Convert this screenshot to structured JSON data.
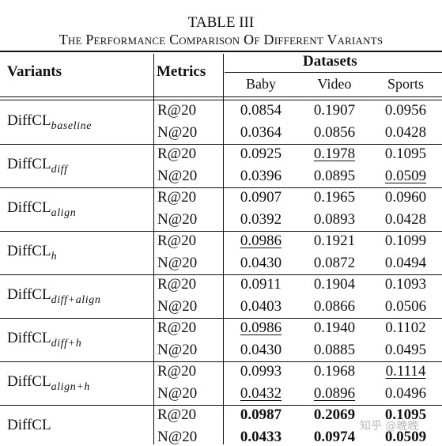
{
  "caption": {
    "label": "TABLE III",
    "title": "The Performance Comparison Of Different Variants"
  },
  "header": {
    "variants": "Variants",
    "metrics": "Metrics",
    "datasets": "Datasets",
    "columns": [
      "Baby",
      "Video",
      "Sports"
    ]
  },
  "groups": [
    {
      "base": "DiffCL",
      "suffix": "baseline",
      "rows": [
        {
          "metric": "R@20",
          "cells": [
            {
              "v": "0.0854"
            },
            {
              "v": "0.1907"
            },
            {
              "v": "0.0956"
            }
          ]
        },
        {
          "metric": "N@20",
          "cells": [
            {
              "v": "0.0364"
            },
            {
              "v": "0.0856"
            },
            {
              "v": "0.0428"
            }
          ]
        }
      ]
    },
    {
      "base": "DiffCL",
      "suffix": "diff",
      "rows": [
        {
          "metric": "R@20",
          "cells": [
            {
              "v": "0.0925"
            },
            {
              "v": "0.1978",
              "u": true
            },
            {
              "v": "0.1095"
            }
          ]
        },
        {
          "metric": "N@20",
          "cells": [
            {
              "v": "0.0396"
            },
            {
              "v": "0.0895"
            },
            {
              "v": "0.0509",
              "u": true
            }
          ]
        }
      ]
    },
    {
      "base": "DiffCL",
      "suffix": "align",
      "rows": [
        {
          "metric": "R@20",
          "cells": [
            {
              "v": "0.0907"
            },
            {
              "v": "0.1965"
            },
            {
              "v": "0.0960"
            }
          ]
        },
        {
          "metric": "N@20",
          "cells": [
            {
              "v": "0.0392"
            },
            {
              "v": "0.0893"
            },
            {
              "v": "0.0428"
            }
          ]
        }
      ]
    },
    {
      "base": "DiffCL",
      "suffix": "h",
      "rows": [
        {
          "metric": "R@20",
          "cells": [
            {
              "v": "0.0986",
              "u": true
            },
            {
              "v": "0.1921"
            },
            {
              "v": "0.1099"
            }
          ]
        },
        {
          "metric": "N@20",
          "cells": [
            {
              "v": "0.0430"
            },
            {
              "v": "0.0872"
            },
            {
              "v": "0.0494"
            }
          ]
        }
      ]
    },
    {
      "base": "DiffCL",
      "suffix": "diff+align",
      "rows": [
        {
          "metric": "R@20",
          "cells": [
            {
              "v": "0.0911"
            },
            {
              "v": "0.1904"
            },
            {
              "v": "0.1093"
            }
          ]
        },
        {
          "metric": "N@20",
          "cells": [
            {
              "v": "0.0403"
            },
            {
              "v": "0.0866"
            },
            {
              "v": "0.0506"
            }
          ]
        }
      ]
    },
    {
      "base": "DiffCL",
      "suffix": "diff+h",
      "rows": [
        {
          "metric": "R@20",
          "cells": [
            {
              "v": "0.0986",
              "u": true
            },
            {
              "v": "0.1940"
            },
            {
              "v": "0.1102"
            }
          ]
        },
        {
          "metric": "N@20",
          "cells": [
            {
              "v": "0.0430"
            },
            {
              "v": "0.0885"
            },
            {
              "v": "0.0495"
            }
          ]
        }
      ]
    },
    {
      "base": "DiffCL",
      "suffix": "align+h",
      "rows": [
        {
          "metric": "R@20",
          "cells": [
            {
              "v": "0.0993"
            },
            {
              "v": "0.1968"
            },
            {
              "v": "0.1114",
              "u": true
            }
          ]
        },
        {
          "metric": "N@20",
          "cells": [
            {
              "v": "0.0432",
              "u": true
            },
            {
              "v": "0.0896",
              "u": true
            },
            {
              "v": "0.0496"
            }
          ]
        }
      ]
    },
    {
      "base": "DiffCL",
      "suffix": "",
      "rows": [
        {
          "metric": "R@20",
          "cells": [
            {
              "v": "0.0987",
              "b": true
            },
            {
              "v": "0.2069",
              "b": true
            },
            {
              "v": "0.1095",
              "b": true
            }
          ]
        },
        {
          "metric": "N@20",
          "cells": [
            {
              "v": "0.0433",
              "b": true
            },
            {
              "v": "0.0974",
              "b": true
            },
            {
              "v": "0.0509",
              "b": true
            }
          ]
        }
      ]
    }
  ],
  "watermark": "知乎 @晚晚"
}
